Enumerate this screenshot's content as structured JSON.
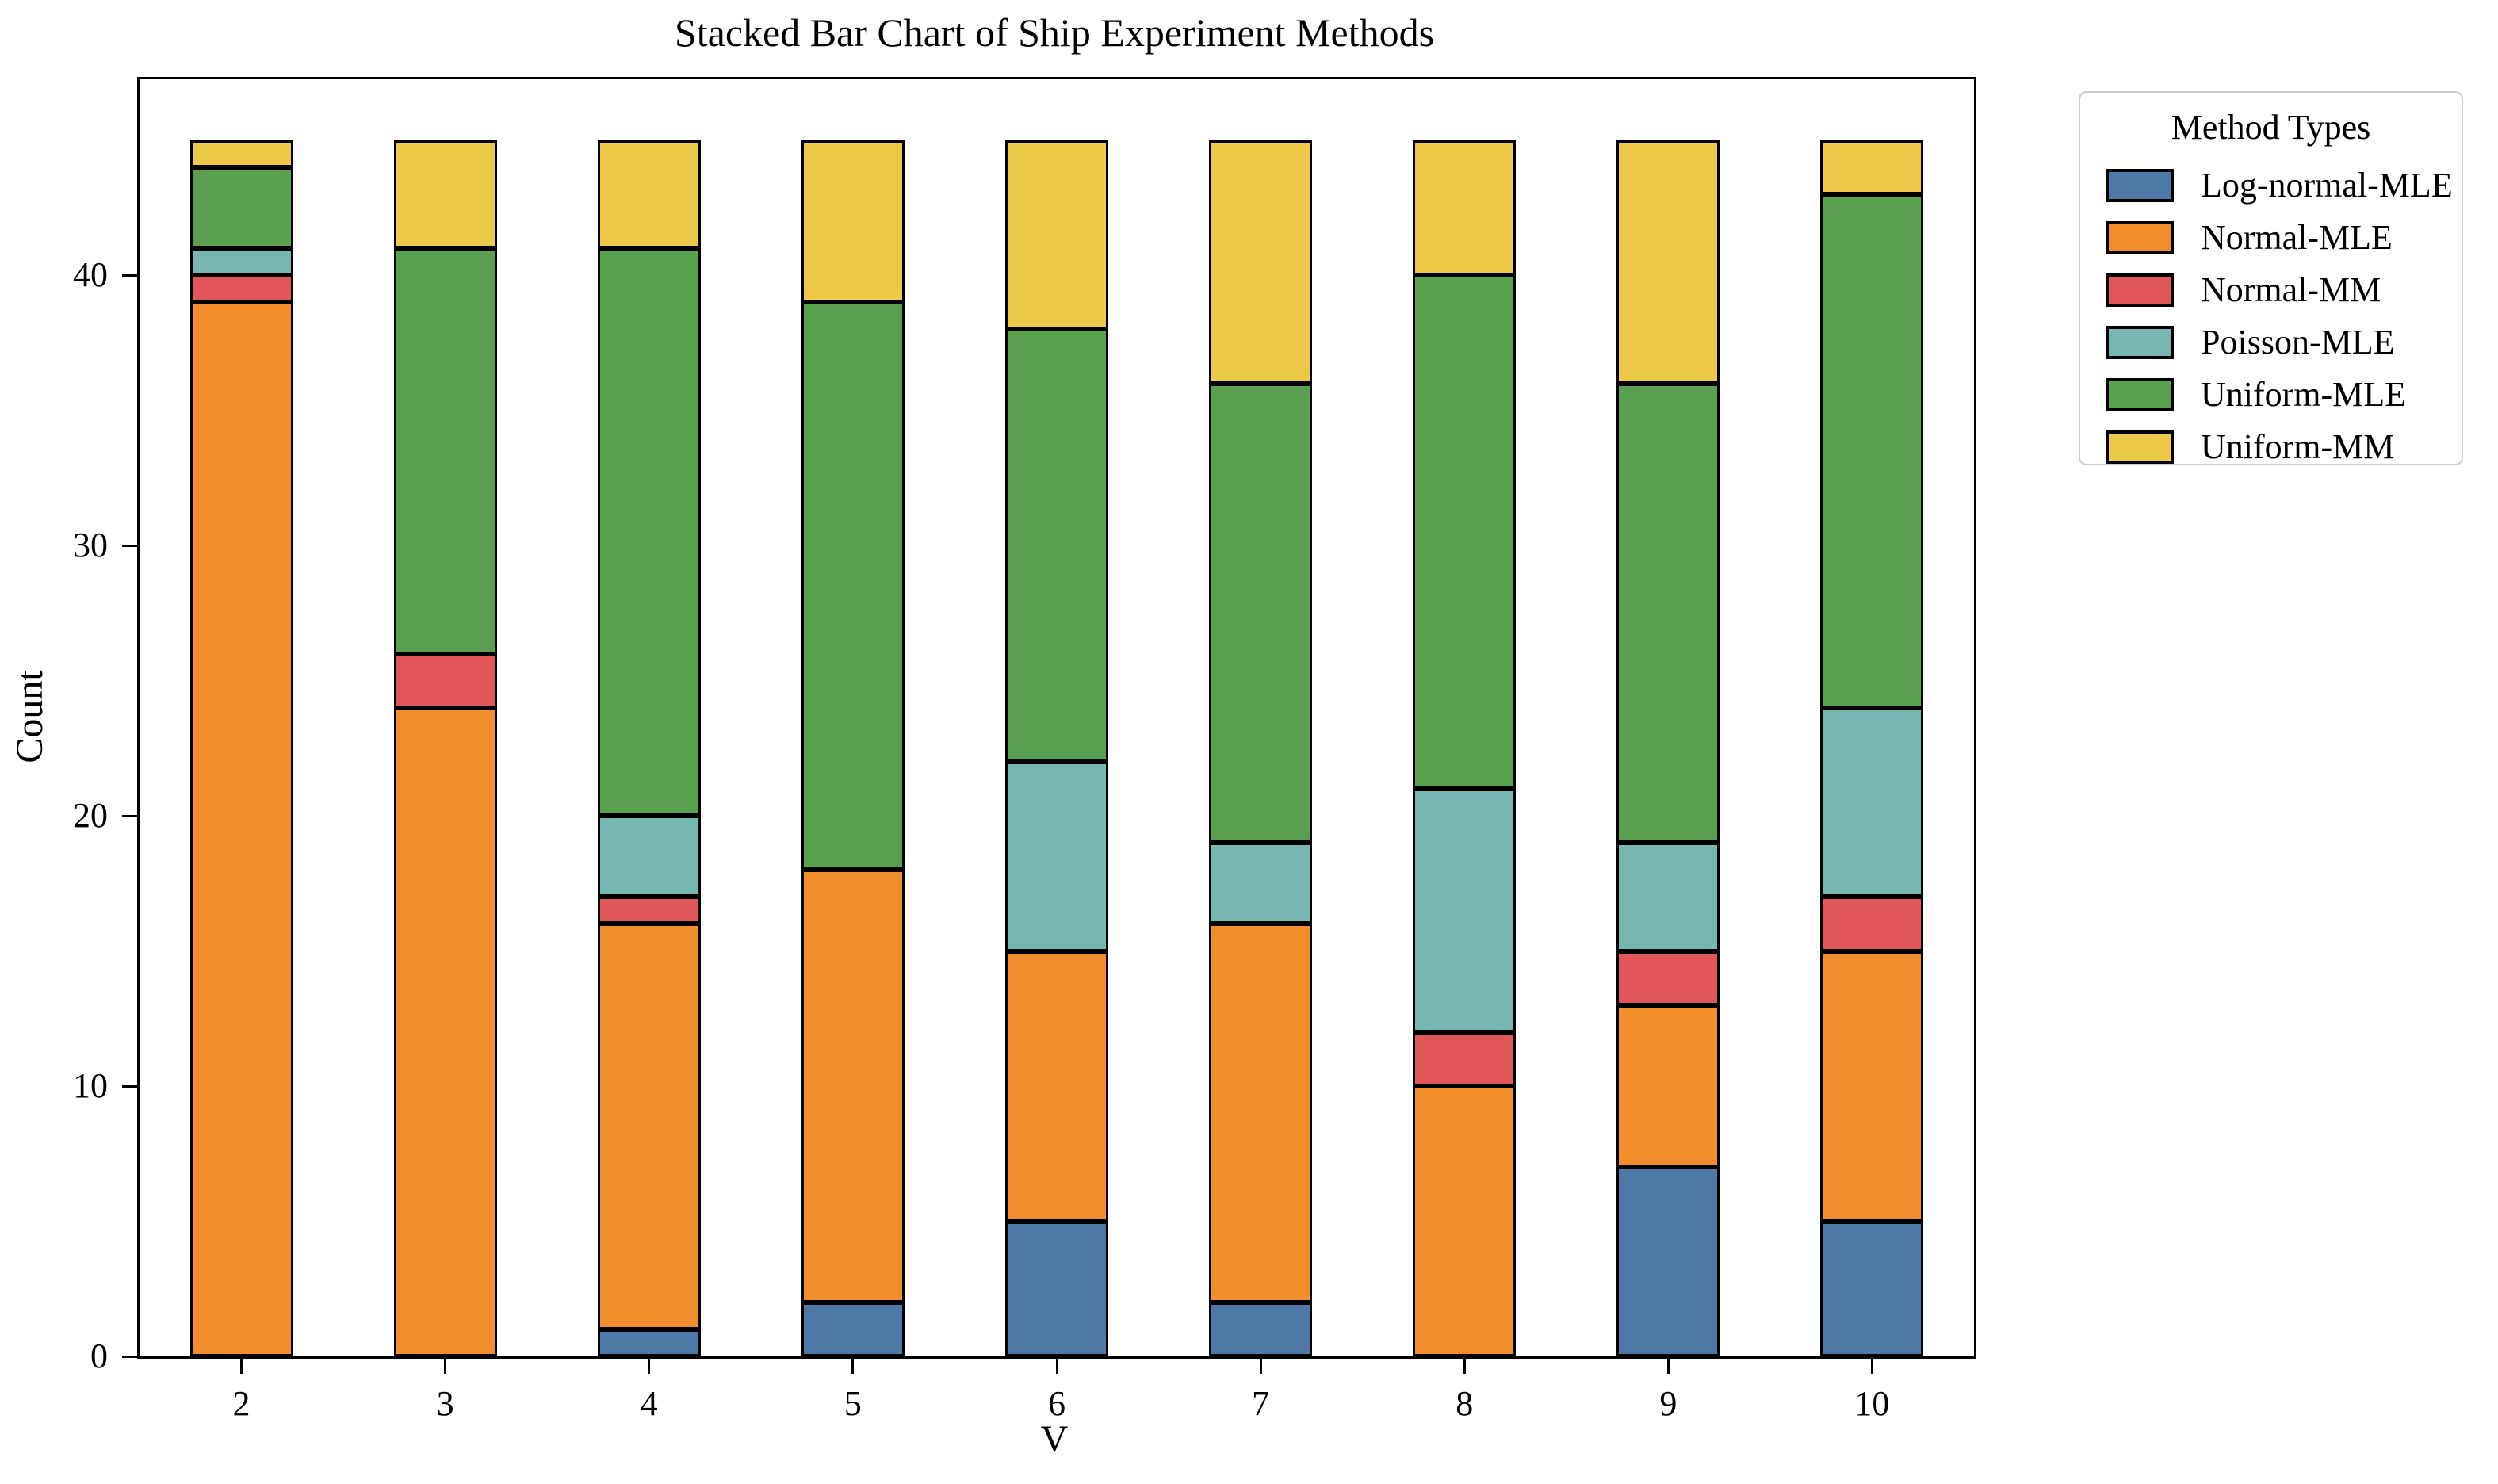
{
  "chart_data": {
    "type": "bar",
    "stacked": true,
    "title": "Stacked Bar Chart of Ship Experiment Methods",
    "xlabel": "V",
    "ylabel": "Count",
    "legend_title": "Method Types",
    "legend_position": "right-outside",
    "grid": false,
    "background_color": "#ffffff",
    "bar_edge_color": "#000000",
    "categories": [
      "2",
      "3",
      "4",
      "5",
      "6",
      "7",
      "8",
      "9",
      "10"
    ],
    "yticks": [
      0,
      10,
      20,
      30,
      40
    ],
    "ylim": [
      0,
      47.25
    ],
    "bar_total_per_category": 45,
    "series": [
      {
        "name": "Log-normal-MLE",
        "color": "#4e79a7",
        "values": [
          0,
          0,
          1,
          2,
          5,
          2,
          0,
          7,
          5
        ]
      },
      {
        "name": "Normal-MLE",
        "color": "#f28e2b",
        "values": [
          39,
          24,
          15,
          16,
          10,
          14,
          10,
          6,
          10
        ]
      },
      {
        "name": "Normal-MM",
        "color": "#e15759",
        "values": [
          1,
          2,
          1,
          0,
          0,
          0,
          2,
          2,
          2
        ]
      },
      {
        "name": "Poisson-MLE",
        "color": "#76b7b2",
        "values": [
          1,
          0,
          3,
          0,
          7,
          3,
          9,
          4,
          7
        ]
      },
      {
        "name": "Uniform-MLE",
        "color": "#59a14f",
        "values": [
          3,
          15,
          21,
          21,
          16,
          17,
          19,
          17,
          19
        ]
      },
      {
        "name": "Uniform-MM",
        "color": "#edc948",
        "values": [
          1,
          4,
          4,
          6,
          7,
          9,
          5,
          9,
          2
        ]
      }
    ]
  }
}
